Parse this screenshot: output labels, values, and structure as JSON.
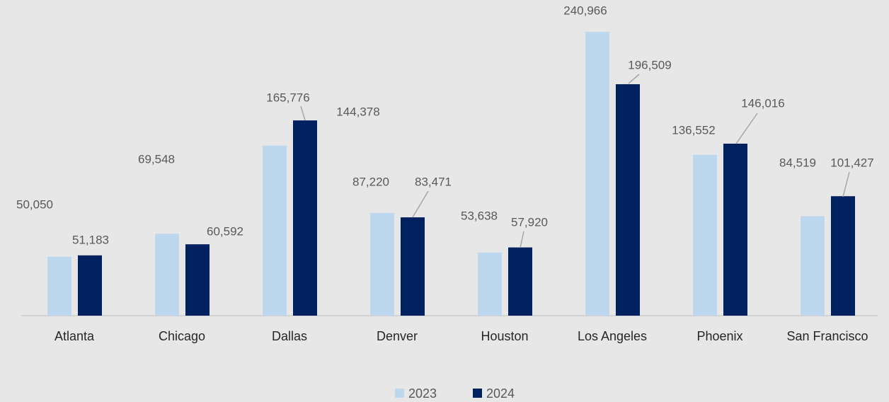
{
  "chart_data": {
    "type": "bar",
    "categories": [
      "Atlanta",
      "Chicago",
      "Dallas",
      "Denver",
      "Houston",
      "Los Angeles",
      "Phoenix",
      "San Francisco"
    ],
    "series": [
      {
        "name": "2023",
        "color": "#bdd7ee",
        "values": [
          50050,
          69548,
          144378,
          87220,
          53638,
          240966,
          136552,
          84519
        ],
        "value_labels": [
          "50,050",
          "69,548",
          "144,378",
          "87,220",
          "53,638",
          "240,966",
          "136,552",
          "84,519"
        ]
      },
      {
        "name": "2024",
        "color": "#002060",
        "values": [
          51183,
          60592,
          165776,
          83471,
          57920,
          196509,
          146016,
          101427
        ],
        "value_labels": [
          "51,183",
          "60,592",
          "165,776",
          "83,471",
          "57,920",
          "196,509",
          "146,016",
          "101,427"
        ]
      }
    ],
    "legend": "bottom"
  }
}
